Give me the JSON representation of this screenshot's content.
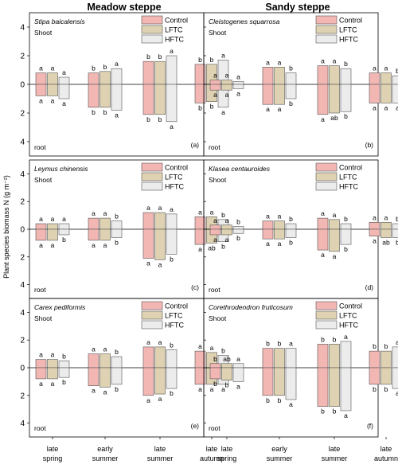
{
  "figure": {
    "col_titles": [
      "Meadow steppe",
      "Sandy steppe"
    ],
    "ylabel": "Plant species biomass N (g m⁻²)",
    "shoot_label": "Shoot",
    "root_label": "root",
    "colors": {
      "Control": "#f2b6b3",
      "LFTC": "#dfd2b2",
      "HFTC": "#ececec",
      "stroke": "#555555"
    }
  },
  "chart_data": {
    "type": "bar",
    "categories": [
      "late spring",
      "early summer",
      "late summer",
      "late autumn"
    ],
    "series_names": [
      "Control",
      "LFTC",
      "HFTC"
    ],
    "ylim": [
      -5,
      5
    ],
    "yticks": [
      4,
      2,
      0,
      2,
      4
    ],
    "panels": [
      {
        "species": "Stipa baicalensis",
        "tag": "(a)",
        "col": 0,
        "row": 0,
        "shoot": [
          [
            0.8,
            0.8,
            0.5
          ],
          [
            0.8,
            0.9,
            1.1
          ],
          [
            1.6,
            1.6,
            2.0
          ],
          [
            1.4,
            1.4,
            1.7
          ]
        ],
        "root": [
          [
            0.8,
            0.8,
            1.0
          ],
          [
            1.6,
            1.6,
            1.8
          ],
          [
            2.1,
            2.1,
            2.6
          ],
          [
            1.3,
            1.2,
            1.6
          ]
        ],
        "shoot_letters": [
          [
            "a",
            "a",
            "a"
          ],
          [
            "b",
            "b",
            "a"
          ],
          [
            "b",
            "b",
            "a"
          ],
          [
            "b",
            "b",
            "a"
          ]
        ],
        "root_letters": [
          [
            "a",
            "a",
            "a"
          ],
          [
            "b",
            "b",
            "a"
          ],
          [
            "b",
            "b",
            "a"
          ],
          [
            "b",
            "b",
            "a"
          ]
        ]
      },
      {
        "species": "Cleistogenes squarrosa",
        "tag": "(b)",
        "col": 1,
        "row": 0,
        "shoot": [
          [
            0.3,
            0.3,
            0.2
          ],
          [
            1.2,
            1.2,
            0.8
          ],
          [
            1.3,
            1.3,
            1.1
          ],
          [
            0.8,
            0.8,
            0.6
          ]
        ],
        "root": [
          [
            0.4,
            0.4,
            0.3
          ],
          [
            1.4,
            1.4,
            1.0
          ],
          [
            2.1,
            2.0,
            1.9
          ],
          [
            1.3,
            1.3,
            1.3
          ]
        ],
        "shoot_letters": [
          [
            "a",
            "a",
            "a"
          ],
          [
            "a",
            "a",
            "b"
          ],
          [
            "a",
            "a",
            "b"
          ],
          [
            "a",
            "a",
            "b"
          ]
        ],
        "root_letters": [
          [
            "a",
            "a",
            "a"
          ],
          [
            "a",
            "a",
            "b"
          ],
          [
            "a",
            "ab",
            "b"
          ],
          [
            "a",
            "a",
            "a"
          ]
        ]
      },
      {
        "species": "Leymus chinensis",
        "tag": "(c)",
        "col": 0,
        "row": 1,
        "shoot": [
          [
            0.4,
            0.4,
            0.4
          ],
          [
            0.8,
            0.8,
            0.6
          ],
          [
            1.2,
            1.2,
            1.1
          ],
          [
            0.9,
            0.9,
            0.7
          ]
        ],
        "root": [
          [
            0.8,
            0.8,
            0.4
          ],
          [
            0.8,
            0.8,
            0.6
          ],
          [
            2.1,
            2.2,
            1.8
          ],
          [
            1.1,
            1.0,
            0.9
          ]
        ],
        "shoot_letters": [
          [
            "a",
            "a",
            "a"
          ],
          [
            "a",
            "a",
            "b"
          ],
          [
            "a",
            "a",
            "a"
          ],
          [
            "a",
            "a",
            "b"
          ]
        ],
        "root_letters": [
          [
            "a",
            "a",
            "b"
          ],
          [
            "a",
            "a",
            "b"
          ],
          [
            "a",
            "a",
            "b"
          ],
          [
            "a",
            "ab",
            "b"
          ]
        ]
      },
      {
        "species": "Klasea centauroides",
        "tag": "(d)",
        "col": 1,
        "row": 1,
        "shoot": [
          [
            0.3,
            0.3,
            0.2
          ],
          [
            0.6,
            0.6,
            0.4
          ],
          [
            0.8,
            0.7,
            0.4
          ],
          [
            0.5,
            0.5,
            0.4
          ]
        ],
        "root": [
          [
            0.4,
            0.4,
            0.3
          ],
          [
            0.7,
            0.7,
            0.6
          ],
          [
            1.5,
            1.6,
            1.1
          ],
          [
            0.5,
            0.6,
            0.6
          ]
        ],
        "shoot_letters": [
          [
            "a",
            "a",
            "b"
          ],
          [
            "a",
            "a",
            "b"
          ],
          [
            "a",
            "a",
            "b"
          ],
          [
            "a",
            "a",
            "b"
          ]
        ],
        "root_letters": [
          [
            "a",
            "a",
            "b"
          ],
          [
            "a",
            "a",
            "b"
          ],
          [
            "a",
            "a",
            "b"
          ],
          [
            "a",
            "ab",
            "b"
          ]
        ]
      },
      {
        "species": "Carex pediformis",
        "tag": "(e)",
        "col": 0,
        "row": 2,
        "shoot": [
          [
            0.6,
            0.6,
            0.5
          ],
          [
            1.0,
            1.0,
            0.8
          ],
          [
            1.5,
            1.5,
            1.3
          ],
          [
            1.2,
            1.1,
            0.9
          ]
        ],
        "root": [
          [
            0.8,
            0.8,
            0.7
          ],
          [
            1.3,
            1.4,
            1.2
          ],
          [
            2.0,
            1.9,
            1.5
          ],
          [
            1.2,
            1.2,
            1.2
          ]
        ],
        "shoot_letters": [
          [
            "a",
            "a",
            "b"
          ],
          [
            "a",
            "a",
            "b"
          ],
          [
            "a",
            "a",
            "b"
          ],
          [
            "a",
            "a",
            "b"
          ]
        ],
        "root_letters": [
          [
            "a",
            "a",
            "b"
          ],
          [
            "a",
            "a",
            "b"
          ],
          [
            "a",
            "a",
            "b"
          ],
          [
            "a",
            "a",
            "a"
          ]
        ]
      },
      {
        "species": "Corethrodendron fruticosum",
        "tag": "(f)",
        "col": 1,
        "row": 2,
        "shoot": [
          [
            0.3,
            0.3,
            0.3
          ],
          [
            1.4,
            1.4,
            1.4
          ],
          [
            1.7,
            1.7,
            1.9
          ],
          [
            1.2,
            1.2,
            1.5
          ]
        ],
        "root": [
          [
            0.8,
            0.9,
            1.0
          ],
          [
            2.0,
            2.0,
            2.3
          ],
          [
            2.8,
            2.8,
            3.1
          ],
          [
            1.2,
            1.2,
            1.5
          ]
        ],
        "shoot_letters": [
          [
            "b",
            "ab",
            "a"
          ],
          [
            "b",
            "b",
            "a"
          ],
          [
            "b",
            "b",
            "a"
          ],
          [
            "b",
            "b",
            "a"
          ]
        ],
        "root_letters": [
          [
            "b",
            "b",
            "a"
          ],
          [
            "b",
            "b",
            "a"
          ],
          [
            "b",
            "b",
            "a"
          ],
          [
            "b",
            "b",
            "a"
          ]
        ]
      }
    ]
  }
}
